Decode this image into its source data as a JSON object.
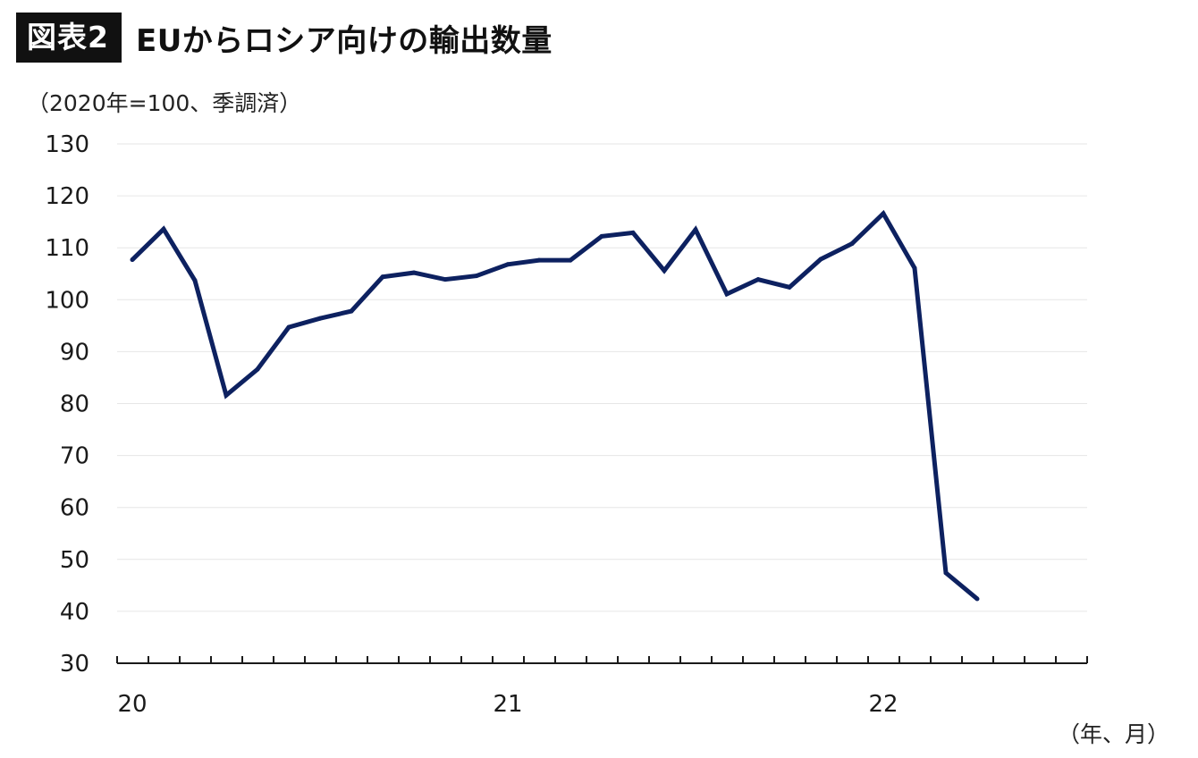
{
  "header": {
    "badge": "図表2",
    "title": "EUからロシア向けの輸出数量"
  },
  "unit_label": "（2020年=100、季調済）",
  "x_unit_label": "（年、月）",
  "colors": {
    "line": "#0d2160",
    "grid": "#e6e6e6",
    "axis": "#1a1a1a"
  },
  "chart_data": {
    "type": "line",
    "title": "EUからロシア向けの輸出数量",
    "ylabel": "（2020年=100、季調済）",
    "xlabel": "（年、月）",
    "ylim": [
      30,
      130
    ],
    "yticks": [
      30,
      40,
      50,
      60,
      70,
      80,
      90,
      100,
      110,
      120,
      130
    ],
    "x_tick_labels": [
      {
        "label": "20",
        "month_index": 0
      },
      {
        "label": "21",
        "month_index": 12
      },
      {
        "label": "22",
        "month_index": 24
      }
    ],
    "x_month_slots": 31,
    "grid": true,
    "series": [
      {
        "values": [
          107.7,
          113.6,
          103.7,
          81.6,
          86.6,
          94.7,
          96.4,
          97.8,
          104.4,
          105.2,
          103.9,
          104.6,
          106.8,
          107.6,
          107.6,
          112.2,
          112.9,
          105.6,
          113.5,
          101.1,
          103.9,
          102.4,
          107.8,
          110.8,
          116.6,
          106.1,
          47.4,
          42.4
        ]
      }
    ]
  }
}
